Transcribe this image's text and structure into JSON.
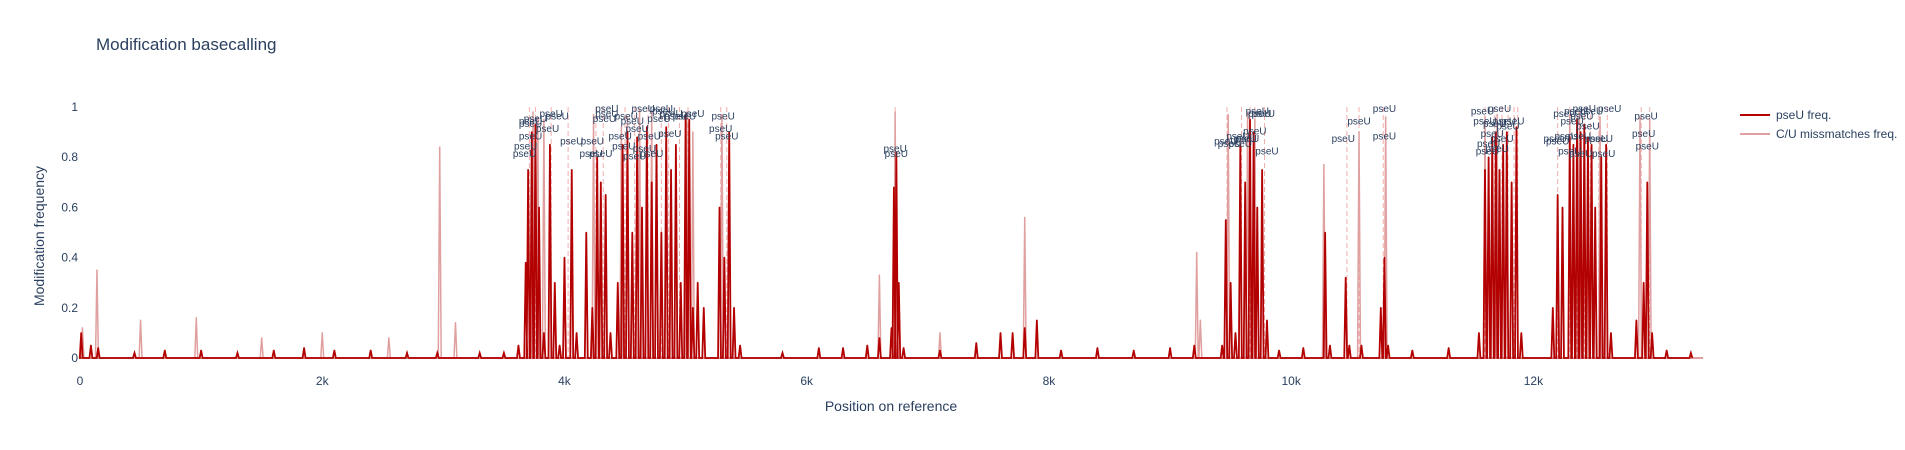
{
  "chart_data": {
    "type": "line",
    "title": "Modification basecalling",
    "xlabel": "Position on reference",
    "ylabel": "Modification frequency",
    "xlim": [
      0,
      13400
    ],
    "ylim": [
      0,
      1
    ],
    "x_ticks": [
      {
        "value": 0,
        "label": "0"
      },
      {
        "value": 2000,
        "label": "2k"
      },
      {
        "value": 4000,
        "label": "4k"
      },
      {
        "value": 6000,
        "label": "6k"
      },
      {
        "value": 8000,
        "label": "8k"
      },
      {
        "value": 10000,
        "label": "10k"
      },
      {
        "value": 12000,
        "label": "12k"
      }
    ],
    "y_ticks": [
      {
        "value": 0,
        "label": "0"
      },
      {
        "value": 0.2,
        "label": "0.2"
      },
      {
        "value": 0.4,
        "label": "0.4"
      },
      {
        "value": 0.6,
        "label": "0.6"
      },
      {
        "value": 0.8,
        "label": "0.8"
      },
      {
        "value": 1,
        "label": "1"
      }
    ],
    "grid": false,
    "legend_position": "top-right",
    "series": [
      {
        "name": "pseU freq.",
        "color": "#b30000",
        "points": [
          [
            10,
            0.1
          ],
          [
            90,
            0.05
          ],
          [
            150,
            0.04
          ],
          [
            450,
            0.02
          ],
          [
            700,
            0.03
          ],
          [
            1000,
            0.03
          ],
          [
            1300,
            0.02
          ],
          [
            1600,
            0.03
          ],
          [
            1850,
            0.04
          ],
          [
            2100,
            0.03
          ],
          [
            2400,
            0.03
          ],
          [
            2700,
            0.02
          ],
          [
            2950,
            0.02
          ],
          [
            3300,
            0.02
          ],
          [
            3500,
            0.02
          ],
          [
            3620,
            0.05
          ],
          [
            3680,
            0.38
          ],
          [
            3700,
            0.75
          ],
          [
            3730,
            0.9
          ],
          [
            3760,
            0.93
          ],
          [
            3790,
            0.6
          ],
          [
            3830,
            0.1
          ],
          [
            3880,
            0.85
          ],
          [
            3920,
            0.3
          ],
          [
            3960,
            0.05
          ],
          [
            4000,
            0.4
          ],
          [
            4060,
            0.75
          ],
          [
            4100,
            0.1
          ],
          [
            4180,
            0.5
          ],
          [
            4230,
            0.2
          ],
          [
            4270,
            0.8
          ],
          [
            4300,
            0.7
          ],
          [
            4340,
            0.65
          ],
          [
            4380,
            0.1
          ],
          [
            4440,
            0.3
          ],
          [
            4480,
            0.85
          ],
          [
            4520,
            0.9
          ],
          [
            4560,
            0.5
          ],
          [
            4600,
            0.88
          ],
          [
            4640,
            0.6
          ],
          [
            4680,
            0.92
          ],
          [
            4720,
            0.7
          ],
          [
            4760,
            0.85
          ],
          [
            4800,
            0.5
          ],
          [
            4840,
            0.92
          ],
          [
            4880,
            0.75
          ],
          [
            4920,
            0.85
          ],
          [
            4960,
            0.3
          ],
          [
            5000,
            0.97
          ],
          [
            5030,
            0.95
          ],
          [
            5060,
            0.2
          ],
          [
            5100,
            0.3
          ],
          [
            5150,
            0.2
          ],
          [
            5280,
            0.6
          ],
          [
            5320,
            0.4
          ],
          [
            5360,
            0.9
          ],
          [
            5400,
            0.2
          ],
          [
            5450,
            0.05
          ],
          [
            5800,
            0.02
          ],
          [
            6100,
            0.04
          ],
          [
            6300,
            0.04
          ],
          [
            6500,
            0.05
          ],
          [
            6600,
            0.08
          ],
          [
            6700,
            0.12
          ],
          [
            6720,
            0.68
          ],
          [
            6740,
            0.82
          ],
          [
            6760,
            0.3
          ],
          [
            6800,
            0.04
          ],
          [
            7100,
            0.03
          ],
          [
            7400,
            0.06
          ],
          [
            7600,
            0.1
          ],
          [
            7700,
            0.1
          ],
          [
            7800,
            0.12
          ],
          [
            7900,
            0.15
          ],
          [
            8100,
            0.03
          ],
          [
            8400,
            0.04
          ],
          [
            8700,
            0.03
          ],
          [
            9000,
            0.04
          ],
          [
            9200,
            0.05
          ],
          [
            9430,
            0.05
          ],
          [
            9460,
            0.55
          ],
          [
            9500,
            0.3
          ],
          [
            9540,
            0.1
          ],
          [
            9580,
            0.85
          ],
          [
            9620,
            0.7
          ],
          [
            9660,
            0.95
          ],
          [
            9690,
            0.9
          ],
          [
            9720,
            0.6
          ],
          [
            9760,
            0.75
          ],
          [
            9800,
            0.15
          ],
          [
            9900,
            0.03
          ],
          [
            10100,
            0.04
          ],
          [
            10280,
            0.5
          ],
          [
            10320,
            0.05
          ],
          [
            10450,
            0.32
          ],
          [
            10480,
            0.05
          ],
          [
            10580,
            0.05
          ],
          [
            10740,
            0.2
          ],
          [
            10770,
            0.4
          ],
          [
            10800,
            0.05
          ],
          [
            11000,
            0.03
          ],
          [
            11300,
            0.04
          ],
          [
            11550,
            0.1
          ],
          [
            11600,
            0.75
          ],
          [
            11630,
            0.8
          ],
          [
            11660,
            0.88
          ],
          [
            11690,
            0.9
          ],
          [
            11720,
            0.75
          ],
          [
            11750,
            0.85
          ],
          [
            11780,
            0.9
          ],
          [
            11820,
            0.7
          ],
          [
            11860,
            0.92
          ],
          [
            11900,
            0.1
          ],
          [
            12160,
            0.2
          ],
          [
            12200,
            0.65
          ],
          [
            12240,
            0.6
          ],
          [
            12300,
            0.88
          ],
          [
            12330,
            0.85
          ],
          [
            12360,
            0.95
          ],
          [
            12390,
            0.9
          ],
          [
            12420,
            0.93
          ],
          [
            12450,
            0.88
          ],
          [
            12480,
            0.85
          ],
          [
            12510,
            0.6
          ],
          [
            12560,
            0.8
          ],
          [
            12600,
            0.85
          ],
          [
            12640,
            0.1
          ],
          [
            12850,
            0.15
          ],
          [
            12910,
            0.3
          ],
          [
            12940,
            0.7
          ],
          [
            12980,
            0.1
          ],
          [
            13100,
            0.03
          ],
          [
            13300,
            0.02
          ]
        ]
      },
      {
        "name": "C/U missmatches freq.",
        "color": "#e0a0a0",
        "points": [
          [
            20,
            0.12
          ],
          [
            140,
            0.35
          ],
          [
            500,
            0.15
          ],
          [
            960,
            0.16
          ],
          [
            1500,
            0.08
          ],
          [
            2000,
            0.1
          ],
          [
            2550,
            0.08
          ],
          [
            2970,
            0.84
          ],
          [
            3100,
            0.14
          ],
          [
            3740,
            0.98
          ],
          [
            3780,
            0.96
          ],
          [
            3830,
            0.95
          ],
          [
            4240,
            0.97
          ],
          [
            4470,
            0.92
          ],
          [
            4520,
            0.96
          ],
          [
            4620,
            0.99
          ],
          [
            4720,
            0.98
          ],
          [
            5010,
            0.98
          ],
          [
            5060,
            0.9
          ],
          [
            5300,
            0.97
          ],
          [
            6600,
            0.33
          ],
          [
            6730,
            0.98
          ],
          [
            7100,
            0.1
          ],
          [
            7800,
            0.56
          ],
          [
            9220,
            0.42
          ],
          [
            9250,
            0.15
          ],
          [
            9480,
            0.97
          ],
          [
            9640,
            0.98
          ],
          [
            9700,
            0.95
          ],
          [
            10270,
            0.77
          ],
          [
            10560,
            0.9
          ],
          [
            10780,
            0.96
          ],
          [
            11600,
            0.96
          ],
          [
            11700,
            0.97
          ],
          [
            12300,
            0.97
          ],
          [
            12380,
            0.98
          ],
          [
            12550,
            0.96
          ],
          [
            12880,
            0.96
          ],
          [
            12960,
            0.95
          ]
        ]
      }
    ],
    "vlines": {
      "color": "#ef9a9a",
      "x": [
        3710,
        3760,
        3890,
        4030,
        4260,
        4320,
        4500,
        4580,
        4690,
        4800,
        4860,
        4950,
        5020,
        5290,
        5340,
        6730,
        9470,
        9590,
        9660,
        9700,
        9780,
        10460,
        10560,
        10760,
        11600,
        11680,
        11740,
        11790,
        11840,
        11870,
        12200,
        12300,
        12360,
        12420,
        12470,
        12540,
        12610,
        12890,
        12960
      ]
    },
    "annotations": [
      {
        "text": "pseU",
        "x": 3670,
        "y": 0.8
      },
      {
        "text": "pseU",
        "x": 3680,
        "y": 0.83
      },
      {
        "text": "pseU",
        "x": 3720,
        "y": 0.87
      },
      {
        "text": "pseU",
        "x": 3720,
        "y": 0.92
      },
      {
        "text": "pseU",
        "x": 3720,
        "y": 0.93
      },
      {
        "text": "pseU",
        "x": 3760,
        "y": 0.94
      },
      {
        "text": "pseU",
        "x": 3860,
        "y": 0.9
      },
      {
        "text": "pseU",
        "x": 3890,
        "y": 0.96
      },
      {
        "text": "pseU",
        "x": 3940,
        "y": 0.95
      },
      {
        "text": "pseU",
        "x": 4060,
        "y": 0.85
      },
      {
        "text": "pseU",
        "x": 4220,
        "y": 0.8
      },
      {
        "text": "pseU",
        "x": 4230,
        "y": 0.85
      },
      {
        "text": "pseU",
        "x": 4300,
        "y": 0.8
      },
      {
        "text": "pseU",
        "x": 4330,
        "y": 0.94
      },
      {
        "text": "pseU",
        "x": 4350,
        "y": 0.96
      },
      {
        "text": "pseU",
        "x": 4350,
        "y": 0.98
      },
      {
        "text": "pseU",
        "x": 4460,
        "y": 0.87
      },
      {
        "text": "pseU",
        "x": 4490,
        "y": 0.83
      },
      {
        "text": "pseU",
        "x": 4510,
        "y": 0.95
      },
      {
        "text": "pseU",
        "x": 4560,
        "y": 0.93
      },
      {
        "text": "pseU",
        "x": 4580,
        "y": 0.79
      },
      {
        "text": "pseU",
        "x": 4600,
        "y": 0.9
      },
      {
        "text": "pseU",
        "x": 4650,
        "y": 0.98
      },
      {
        "text": "pseU",
        "x": 4660,
        "y": 0.82
      },
      {
        "text": "pseU",
        "x": 4700,
        "y": 0.87
      },
      {
        "text": "pseU",
        "x": 4720,
        "y": 0.8
      },
      {
        "text": "pseU",
        "x": 4780,
        "y": 0.94
      },
      {
        "text": "pseU",
        "x": 4800,
        "y": 0.98
      },
      {
        "text": "pseU",
        "x": 4820,
        "y": 0.97
      },
      {
        "text": "pseU",
        "x": 4870,
        "y": 0.88
      },
      {
        "text": "pseU",
        "x": 4880,
        "y": 0.96
      },
      {
        "text": "pseU",
        "x": 4920,
        "y": 0.95
      },
      {
        "text": "pseU",
        "x": 4990,
        "y": 0.95
      },
      {
        "text": "pseU",
        "x": 5060,
        "y": 0.96
      },
      {
        "text": "pseU",
        "x": 5290,
        "y": 0.9
      },
      {
        "text": "pseU",
        "x": 5310,
        "y": 0.95
      },
      {
        "text": "pseU",
        "x": 5340,
        "y": 0.87
      },
      {
        "text": "pseU",
        "x": 6730,
        "y": 0.82
      },
      {
        "text": "pseU",
        "x": 6740,
        "y": 0.8
      },
      {
        "text": "pseU",
        "x": 9460,
        "y": 0.85
      },
      {
        "text": "pseU",
        "x": 9490,
        "y": 0.84
      },
      {
        "text": "pseU",
        "x": 9560,
        "y": 0.87
      },
      {
        "text": "pseU",
        "x": 9580,
        "y": 0.84
      },
      {
        "text": "pseU",
        "x": 9620,
        "y": 0.86
      },
      {
        "text": "pseU",
        "x": 9640,
        "y": 0.86
      },
      {
        "text": "pseU",
        "x": 9700,
        "y": 0.89
      },
      {
        "text": "pseU",
        "x": 9720,
        "y": 0.97
      },
      {
        "text": "pseU",
        "x": 9740,
        "y": 0.96
      },
      {
        "text": "pseU",
        "x": 9770,
        "y": 0.96
      },
      {
        "text": "pseU",
        "x": 9800,
        "y": 0.81
      },
      {
        "text": "pseU",
        "x": 10430,
        "y": 0.86
      },
      {
        "text": "pseU",
        "x": 10560,
        "y": 0.93
      },
      {
        "text": "pseU",
        "x": 10770,
        "y": 0.87
      },
      {
        "text": "pseU",
        "x": 10770,
        "y": 0.98
      },
      {
        "text": "pseU",
        "x": 11580,
        "y": 0.97
      },
      {
        "text": "pseU",
        "x": 11600,
        "y": 0.93
      },
      {
        "text": "pseU",
        "x": 11620,
        "y": 0.81
      },
      {
        "text": "pseU",
        "x": 11630,
        "y": 0.84
      },
      {
        "text": "pseU",
        "x": 11660,
        "y": 0.88
      },
      {
        "text": "pseU",
        "x": 11680,
        "y": 0.92
      },
      {
        "text": "pseU",
        "x": 11700,
        "y": 0.82
      },
      {
        "text": "pseU",
        "x": 11720,
        "y": 0.98
      },
      {
        "text": "pseU",
        "x": 11740,
        "y": 0.86
      },
      {
        "text": "pseU",
        "x": 11760,
        "y": 0.93
      },
      {
        "text": "pseU",
        "x": 11790,
        "y": 0.91
      },
      {
        "text": "pseU",
        "x": 11830,
        "y": 0.93
      },
      {
        "text": "pseU",
        "x": 12180,
        "y": 0.86
      },
      {
        "text": "pseU",
        "x": 12200,
        "y": 0.85
      },
      {
        "text": "pseU",
        "x": 12260,
        "y": 0.96
      },
      {
        "text": "pseU",
        "x": 12270,
        "y": 0.87
      },
      {
        "text": "pseU",
        "x": 12300,
        "y": 0.81
      },
      {
        "text": "pseU",
        "x": 12320,
        "y": 0.93
      },
      {
        "text": "pseU",
        "x": 12350,
        "y": 0.97
      },
      {
        "text": "pseU",
        "x": 12380,
        "y": 0.87
      },
      {
        "text": "pseU",
        "x": 12390,
        "y": 0.8
      },
      {
        "text": "pseU",
        "x": 12400,
        "y": 0.95
      },
      {
        "text": "pseU",
        "x": 12420,
        "y": 0.98
      },
      {
        "text": "pseU",
        "x": 12450,
        "y": 0.91
      },
      {
        "text": "pseU",
        "x": 12480,
        "y": 0.97
      },
      {
        "text": "pseU",
        "x": 12520,
        "y": 0.86
      },
      {
        "text": "pseU",
        "x": 12560,
        "y": 0.86
      },
      {
        "text": "pseU",
        "x": 12580,
        "y": 0.8
      },
      {
        "text": "pseU",
        "x": 12630,
        "y": 0.98
      },
      {
        "text": "pseU",
        "x": 12910,
        "y": 0.88
      },
      {
        "text": "pseU",
        "x": 12930,
        "y": 0.95
      },
      {
        "text": "pseU",
        "x": 12940,
        "y": 0.83
      }
    ]
  }
}
